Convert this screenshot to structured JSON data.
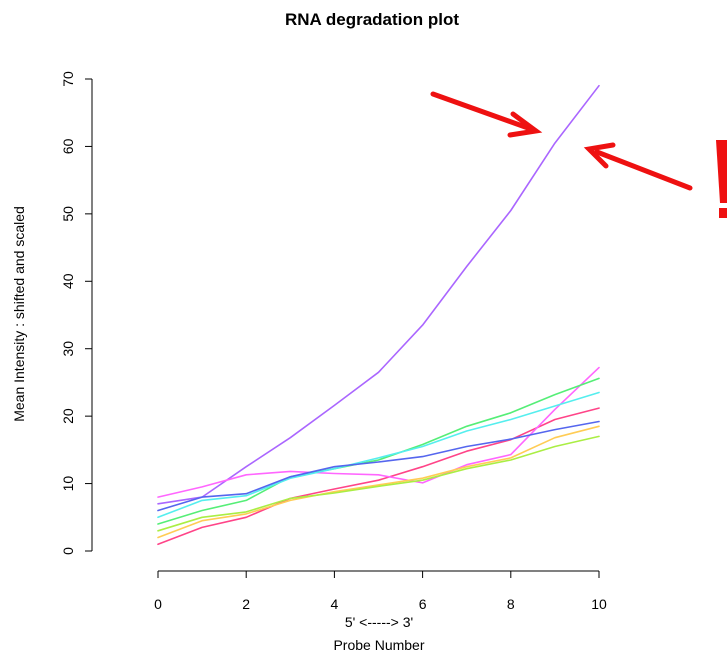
{
  "chart_data": {
    "type": "line",
    "title": "RNA degradation plot",
    "xlabel_top": "5' <-----> 3'",
    "xlabel": "Probe Number",
    "ylabel": "Mean Intensity : shifted and scaled",
    "xlim": [
      0,
      10
    ],
    "ylim": [
      0,
      70
    ],
    "x_ticks": [
      0,
      2,
      4,
      6,
      8,
      10
    ],
    "y_ticks": [
      0,
      10,
      20,
      30,
      40,
      50,
      60,
      70
    ],
    "x": [
      0,
      1,
      2,
      3,
      4,
      5,
      6,
      7,
      8,
      9,
      10
    ],
    "grid": false,
    "legend": "none",
    "series": [
      {
        "color": "#aa66ff",
        "values": [
          7,
          8,
          12.5,
          16.8,
          21.6,
          26.5,
          33.5,
          42.2,
          50.5,
          60.5,
          69
        ]
      },
      {
        "color": "#ff4488",
        "values": [
          1,
          3.5,
          5,
          7.8,
          9.2,
          10.5,
          12.5,
          14.8,
          16.5,
          19.5,
          21.2
        ]
      },
      {
        "color": "#ff66ff",
        "values": [
          8,
          9.5,
          11.3,
          11.8,
          11.5,
          11.3,
          10.1,
          12.8,
          14.3,
          21,
          27.2
        ]
      },
      {
        "color": "#55ee77",
        "values": [
          4,
          6,
          7.5,
          11,
          12.2,
          13.5,
          15.8,
          18.5,
          20.5,
          23.2,
          25.6
        ]
      },
      {
        "color": "#55eeee",
        "values": [
          5,
          7.5,
          8.2,
          10.8,
          12.2,
          13.8,
          15.5,
          17.8,
          19.5,
          21.5,
          23.5
        ]
      },
      {
        "color": "#5566ee",
        "values": [
          6,
          8,
          8.5,
          11,
          12.5,
          13.2,
          14,
          15.5,
          16.6,
          18,
          19.2
        ]
      },
      {
        "color": "#ffcc55",
        "values": [
          2,
          4.5,
          5.5,
          7.5,
          8.8,
          9.8,
          10.8,
          12.5,
          13.8,
          16.8,
          18.5
        ]
      },
      {
        "color": "#aaee44",
        "values": [
          3,
          5,
          5.8,
          7.8,
          8.6,
          9.6,
          10.5,
          12.2,
          13.5,
          15.5,
          17
        ]
      }
    ],
    "annotations": [
      {
        "type": "arrow",
        "color": "#ee1111"
      },
      {
        "type": "arrow",
        "color": "#ee1111"
      },
      {
        "type": "text",
        "text": "!",
        "color": "#ee1111"
      }
    ]
  }
}
